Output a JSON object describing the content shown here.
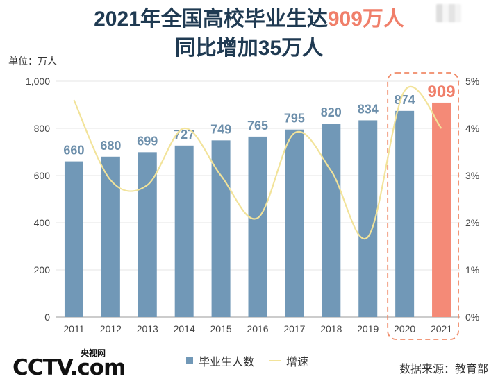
{
  "title_line1_prefix": "2021年全国高校毕业生达",
  "title_line1_accent": "909万人",
  "title_line2": "同比增加35万人",
  "unit_label": "单位：万人",
  "source_label": "数据来源：教育部",
  "logo_text": "CCTV.com",
  "logo_cn": "央视网",
  "colors": {
    "bar": "#7198b7",
    "highlight": "#f48a77",
    "line": "#f2e39a",
    "label": "#6d8fab",
    "accent_label": "#f07f6a",
    "dash_box": "#f08a68"
  },
  "chart_data": {
    "type": "bar",
    "categories": [
      "2011",
      "2012",
      "2013",
      "2014",
      "2015",
      "2016",
      "2017",
      "2018",
      "2019",
      "2020",
      "2021"
    ],
    "series": [
      {
        "name": "毕业生人数",
        "type": "bar",
        "values": [
          660,
          680,
          699,
          727,
          749,
          765,
          795,
          820,
          834,
          874,
          909
        ]
      },
      {
        "name": "增速",
        "type": "line",
        "axis": "right",
        "values": [
          4.6,
          2.9,
          2.8,
          4.0,
          3.0,
          2.1,
          3.9,
          3.1,
          1.7,
          4.8,
          4.0
        ]
      }
    ],
    "yticks_left": [
      "0",
      "200",
      "400",
      "600",
      "800",
      "1,000"
    ],
    "yticks_right": [
      "0%",
      "1%",
      "2%",
      "3%",
      "4%",
      "5%"
    ],
    "ylim_left": [
      0,
      1000
    ],
    "ylim_right": [
      0,
      5
    ],
    "highlight_category": "2021",
    "boxed_categories": [
      "2020",
      "2021"
    ],
    "grid": true,
    "legend_position": "bottom"
  }
}
